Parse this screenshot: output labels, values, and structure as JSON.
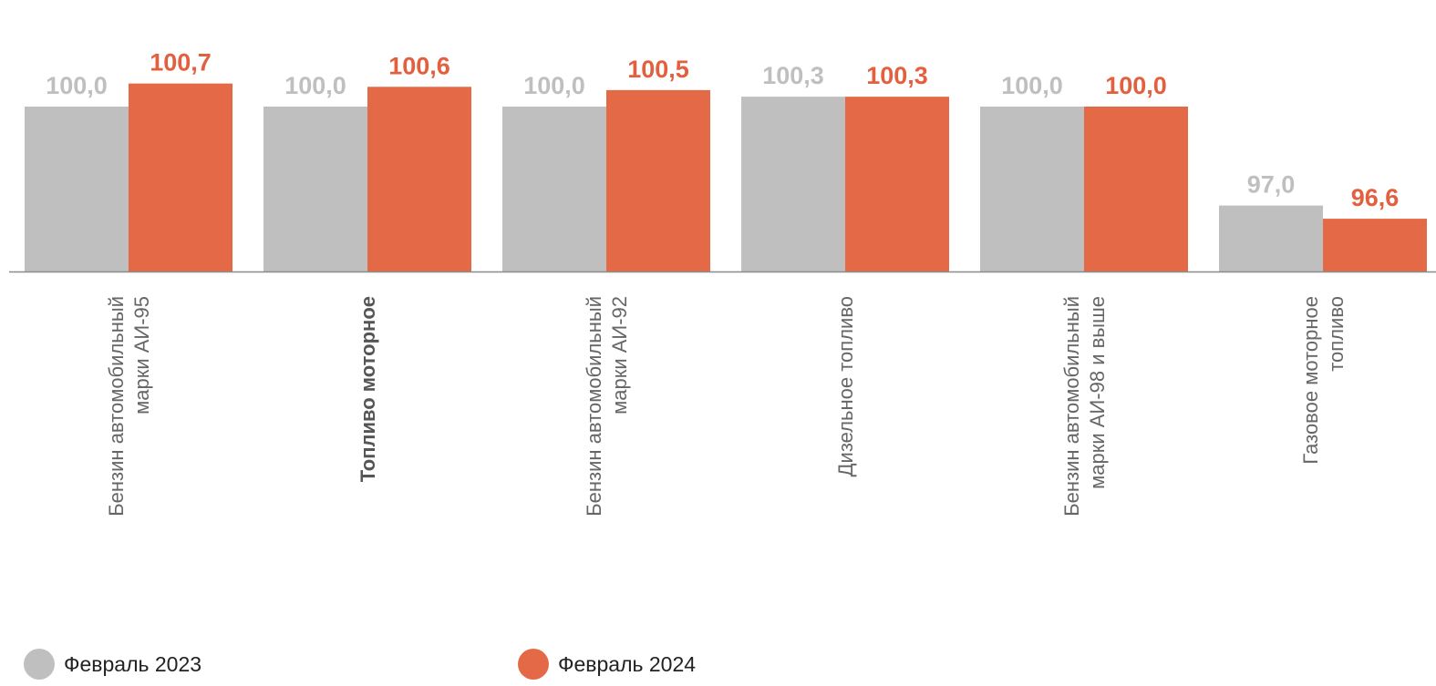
{
  "chart_data": {
    "type": "bar",
    "categories": [
      [
        "Бензин автомобильный",
        "марки АИ-95"
      ],
      [
        "Топливо моторное"
      ],
      [
        "Бензин автомобильный",
        "марки АИ-92"
      ],
      [
        "Дизельное топливо"
      ],
      [
        "Бензин автомобильный",
        "марки АИ-98 и выше"
      ],
      [
        "Газовое моторное",
        "топливо"
      ]
    ],
    "bold_category_index": 1,
    "series": [
      {
        "name": "Февраль 2023",
        "color": "#bfbfbf",
        "label_color": "#bfbfbf",
        "values": [
          100.0,
          100.0,
          100.0,
          100.3,
          100.0,
          97.0
        ],
        "labels": [
          "100,0",
          "100,0",
          "100,0",
          "100,3",
          "100,0",
          "97,0"
        ]
      },
      {
        "name": "Февраль 2024",
        "color": "#e46a47",
        "label_color": "#e2603e",
        "values": [
          100.7,
          100.6,
          100.5,
          100.3,
          100.0,
          96.6
        ],
        "labels": [
          "100,7",
          "100,6",
          "100,5",
          "100,3",
          "100,0",
          "96,6"
        ]
      }
    ],
    "ylim": [
      95.0,
      101.0
    ],
    "legend_position": "bottom",
    "grid": false
  }
}
